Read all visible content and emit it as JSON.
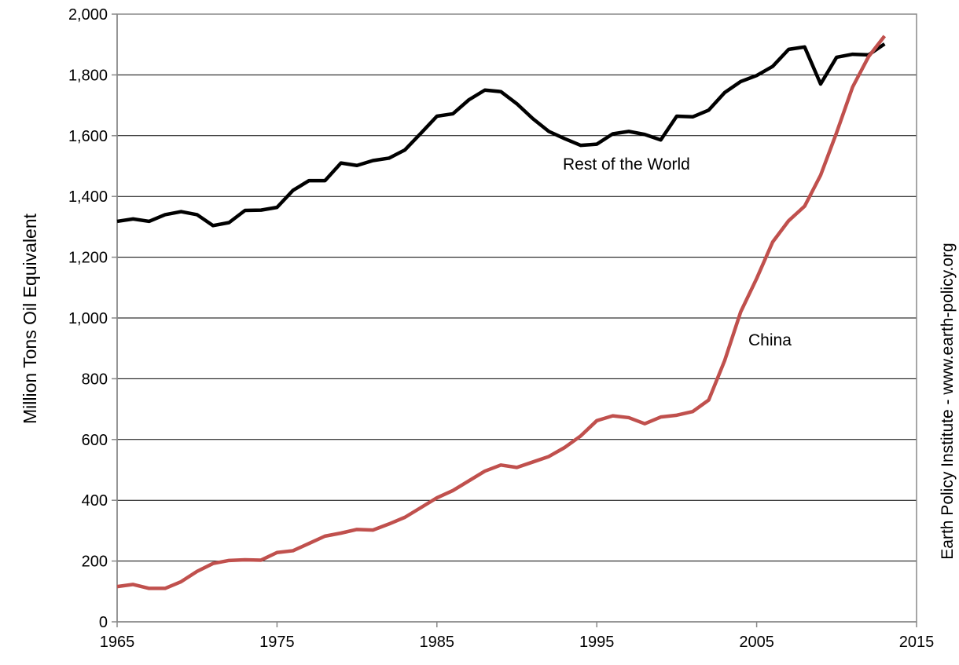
{
  "chart_data": {
    "type": "line",
    "title": "",
    "xlabel": "",
    "ylabel": "Million Tons Oil Equivalent",
    "credit": "Earth Policy Institute - www.earth-policy.org",
    "xlim": [
      1965,
      2015
    ],
    "ylim": [
      0,
      2000
    ],
    "x_ticks": [
      1965,
      1975,
      1985,
      1995,
      2005,
      2015
    ],
    "x_tick_labels": [
      "1965",
      "1975",
      "1985",
      "1995",
      "2005",
      "2015"
    ],
    "y_ticks": [
      0,
      200,
      400,
      600,
      800,
      1000,
      1200,
      1400,
      1600,
      1800,
      2000
    ],
    "y_tick_labels": [
      "0",
      "200",
      "400",
      "600",
      "800",
      "1,000",
      "1,200",
      "1,400",
      "1,600",
      "1,800",
      "2,000"
    ],
    "grid": "horizontal",
    "legend": "none",
    "x": [
      1965,
      1966,
      1967,
      1968,
      1969,
      1970,
      1971,
      1972,
      1973,
      1974,
      1975,
      1976,
      1977,
      1978,
      1979,
      1980,
      1981,
      1982,
      1983,
      1984,
      1985,
      1986,
      1987,
      1988,
      1989,
      1990,
      1991,
      1992,
      1993,
      1994,
      1995,
      1996,
      1997,
      1998,
      1999,
      2000,
      2001,
      2002,
      2003,
      2004,
      2005,
      2006,
      2007,
      2008,
      2009,
      2010,
      2011,
      2012,
      2013
    ],
    "series": [
      {
        "name": "Rest of the World",
        "color": "#000000",
        "values": [
          1318,
          1326,
          1318,
          1340,
          1350,
          1340,
          1304,
          1314,
          1354,
          1355,
          1364,
          1420,
          1452,
          1452,
          1510,
          1502,
          1518,
          1526,
          1553,
          1608,
          1664,
          1672,
          1718,
          1750,
          1745,
          1705,
          1656,
          1614,
          1590,
          1568,
          1572,
          1606,
          1614,
          1604,
          1586,
          1664,
          1662,
          1684,
          1742,
          1778,
          1798,
          1828,
          1884,
          1892,
          1770,
          1858,
          1868,
          1866,
          1902
        ]
      },
      {
        "name": "China",
        "color": "#c0504d",
        "values": [
          116,
          123,
          110,
          110,
          132,
          166,
          192,
          202,
          204,
          203,
          228,
          234,
          258,
          282,
          292,
          304,
          302,
          322,
          344,
          376,
          408,
          432,
          464,
          496,
          516,
          508,
          526,
          544,
          574,
          612,
          662,
          678,
          672,
          652,
          674,
          680,
          692,
          730,
          860,
          1020,
          1130,
          1250,
          1320,
          1368,
          1470,
          1610,
          1760,
          1860,
          1928
        ]
      }
    ]
  }
}
